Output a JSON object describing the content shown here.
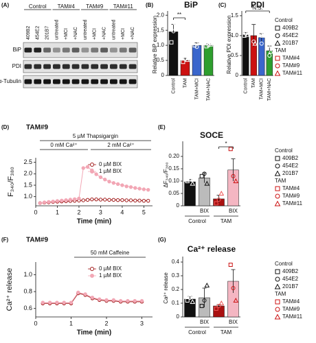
{
  "chart_data": [
    {
      "type": "blot",
      "label": "(A)",
      "groups": [
        {
          "name": "Control",
          "lanes": [
            "409B2",
            "454E2",
            "201B7"
          ]
        },
        {
          "name": "TAM#4",
          "lanes": [
            "untreated",
            "+MCI",
            "+NAC"
          ]
        },
        {
          "name": "TAM#9",
          "lanes": [
            "untreated",
            "+MCI",
            "+NAC"
          ]
        },
        {
          "name": "TAM#11",
          "lanes": [
            "untreated",
            "+MCI",
            "+NAC"
          ]
        }
      ],
      "rows": [
        "BiP",
        "PDI",
        "α-Tubulin"
      ]
    },
    {
      "type": "bar",
      "label": "(B)",
      "title": "BiP",
      "ylabel": "Relative BiP expression",
      "categories": [
        "Control",
        "TAM",
        "TAM+MCI",
        "TAM+NAC"
      ],
      "values": [
        1.45,
        0.5,
        1.0,
        1.0
      ],
      "errors": [
        0.25,
        0.07,
        0.08,
        0.05
      ],
      "points": [
        [
          1.1,
          1.47,
          1.75
        ],
        [
          0.45,
          0.55,
          0.52
        ],
        [
          1.0,
          0.95,
          1.08
        ],
        [
          0.97,
          1.0,
          1.03
        ]
      ],
      "colors": [
        "#111111",
        "#cc1111",
        "#3a66cc",
        "#2e9e2e"
      ],
      "point_colors": [
        "#ffffff",
        "#ffffff",
        "#ffffff",
        "#ffffff"
      ],
      "ylim": [
        0,
        2.05
      ],
      "yticks": [
        0,
        0.5,
        {
          "value": 1,
          "label": "1.0"
        },
        1.5,
        {
          "value": 2,
          "label": "2.0"
        }
      ],
      "significance": "**"
    },
    {
      "type": "bar",
      "label": "(C)",
      "title": "PDI",
      "ylabel": "Relative PDI expression",
      "categories": [
        "Control",
        "TAM",
        "TAM+MCI",
        "TAM+NAC"
      ],
      "values": [
        1.02,
        1.0,
        0.95,
        0.62
      ],
      "errors": [
        0.06,
        0.28,
        0.1,
        0.12
      ],
      "points": [
        [
          1.0,
          1.05,
          1.02
        ],
        [
          1.35,
          0.85,
          0.8
        ],
        [
          1.05,
          0.8,
          1.0
        ],
        [
          0.75,
          0.5,
          0.6
        ]
      ],
      "colors": [
        "#111111",
        "#cc1111",
        "#3a66cc",
        "#2e9e2e"
      ],
      "point_colors": [
        "#ffffff",
        "#ffffff",
        "#ffffff",
        "#ffffff"
      ],
      "ylim": [
        0,
        1.55
      ],
      "yticks": [
        0,
        0.5,
        {
          "value": 1,
          "label": "1.0"
        },
        1.5
      ],
      "significance": "N.S.",
      "legend": [
        {
          "title": "Control",
          "color": "#111111",
          "items": [
            "409B2",
            "454E2",
            "201B7"
          ]
        },
        {
          "title": "TAM",
          "color": "#cc1111",
          "items": [
            "TAM#4",
            "TAM#9",
            "TAM#11"
          ]
        }
      ]
    },
    {
      "type": "line",
      "label": "(D)",
      "title": "TAM#9",
      "ylabel": "F₃₄₀/F₃₈₀",
      "xlabel": "Time (min)",
      "annotations": [
        "5 µM Thapsigargin",
        "0 mM Ca²⁺",
        "2 mM Ca²⁺"
      ],
      "x": [
        0.2,
        0.4,
        0.6,
        0.8,
        1.0,
        1.2,
        1.4,
        1.6,
        1.8,
        2.0,
        2.2,
        2.4,
        2.6,
        2.8,
        3.0,
        3.2,
        3.4,
        3.6,
        3.8,
        4.0,
        4.2,
        4.4,
        4.6,
        4.8,
        5.0,
        5.2
      ],
      "series": [
        {
          "name": "0 µM BIX",
          "color": "#a01818",
          "marker": "open",
          "values": [
            0.72,
            0.74,
            0.75,
            0.77,
            0.78,
            0.79,
            0.8,
            0.81,
            0.82,
            0.83,
            0.84,
            0.86,
            0.88,
            0.88,
            0.87,
            0.87,
            0.86,
            0.86,
            0.85,
            0.85,
            0.84,
            0.84,
            0.83,
            0.83,
            0.82,
            0.82
          ]
        },
        {
          "name": "1 µM BIX",
          "color": "#f2a7b5",
          "marker": "filled",
          "values": [
            0.72,
            0.75,
            0.77,
            0.79,
            0.81,
            0.83,
            0.85,
            0.87,
            0.89,
            0.92,
            2.25,
            2.3,
            2.15,
            1.98,
            1.85,
            1.75,
            1.66,
            1.6,
            1.55,
            1.5,
            1.45,
            1.42,
            1.38,
            1.35,
            1.32,
            1.3
          ]
        }
      ],
      "xlim": [
        0,
        5.4
      ],
      "xticks": [
        0,
        1,
        2,
        3,
        4,
        5
      ],
      "ylim": [
        0.6,
        2.7
      ],
      "yticks": [
        {
          "value": 1,
          "label": "1.0"
        },
        1.5,
        {
          "value": 2,
          "label": "2.0"
        },
        2.5
      ]
    },
    {
      "type": "bar",
      "label": "(E)",
      "title": "SOCE",
      "ylabel": "ΔF₃₄₀/F₃₈₀",
      "categories": [
        null,
        "BIX",
        null,
        "BIX"
      ],
      "groups": [
        "Control",
        "TAM"
      ],
      "values": [
        0.097,
        0.113,
        0.028,
        0.145
      ],
      "errors": [
        0.01,
        0.02,
        0.015,
        0.045
      ],
      "points": [
        [
          0.1,
          0.11,
          0.09
        ],
        [
          0.12,
          0.13,
          0.09
        ],
        [
          0.01,
          0.025,
          0.05
        ],
        [
          0.23,
          0.12,
          0.1
        ]
      ],
      "colors": [
        "#111111",
        "#bbbbbb",
        "#aa1111",
        "#f4b6c2"
      ],
      "point_colors": [
        "#ffffff",
        "#111111",
        "#ee5555",
        "#cc1111"
      ],
      "ylim": [
        0,
        0.25
      ],
      "yticks": [
        0,
        0.05,
        {
          "value": 0.1,
          "label": "0.10"
        },
        0.15,
        {
          "value": 0.2,
          "label": "0.20"
        }
      ],
      "significance": "*",
      "legend": [
        {
          "title": "Control",
          "color": "#111111",
          "items": [
            "409B2",
            "454E2",
            "201B7"
          ]
        },
        {
          "title": "TAM",
          "color": "#cc1111",
          "items": [
            "TAM#4",
            "TAM#9",
            "TAM#11"
          ]
        }
      ]
    },
    {
      "type": "line",
      "label": "(F)",
      "title": "TAM#9",
      "ylabel": "Ca²⁺ release",
      "xlabel": "Time (min)",
      "annotations": [
        "50 mM Caffeine"
      ],
      "x": [
        0.2,
        0.4,
        0.6,
        0.8,
        1.0,
        1.2,
        1.4,
        1.6,
        1.8,
        2.0,
        2.2,
        2.4,
        2.6,
        2.8,
        3.0
      ],
      "series": [
        {
          "name": "0 µM BIX",
          "color": "#a01818",
          "marker": "open",
          "values": [
            0.66,
            0.66,
            0.66,
            0.66,
            0.66,
            0.78,
            0.76,
            0.72,
            0.7,
            0.69,
            0.69,
            0.68,
            0.68,
            0.68,
            0.68
          ]
        },
        {
          "name": "1 µM BIX",
          "color": "#f2a7b5",
          "marker": "filled",
          "values": [
            0.67,
            0.67,
            0.67,
            0.67,
            0.67,
            0.79,
            0.77,
            0.73,
            0.71,
            0.7,
            0.7,
            0.69,
            0.69,
            0.69,
            0.69
          ]
        }
      ],
      "xlim": [
        0,
        3.3
      ],
      "xticks": [
        0,
        1,
        2,
        3
      ],
      "ylim": [
        0.5,
        1.15
      ],
      "yticks": [
        0.6,
        0.8,
        {
          "value": 1,
          "label": "1.0"
        }
      ]
    },
    {
      "type": "bar",
      "label": "(G)",
      "title": "Ca²⁺ release",
      "ylabel": "Ca²⁺ release",
      "categories": [
        null,
        "BIX",
        null,
        "BIX"
      ],
      "groups": [
        "Control",
        "TAM"
      ],
      "values": [
        0.13,
        0.14,
        0.08,
        0.26
      ],
      "errors": [
        0.02,
        0.07,
        0.01,
        0.085
      ],
      "points": [
        [
          0.12,
          0.14,
          0.11
        ],
        [
          0.08,
          0.12,
          0.23
        ],
        [
          0.06,
          0.08,
          0.1
        ],
        [
          0.38,
          0.21,
          0.12
        ]
      ],
      "colors": [
        "#111111",
        "#bbbbbb",
        "#aa1111",
        "#f4b6c2"
      ],
      "point_colors": [
        "#ffffff",
        "#111111",
        "#ee5555",
        "#cc1111"
      ],
      "ylim": [
        0,
        0.42
      ],
      "yticks": [
        0,
        0.1,
        0.2,
        0.3,
        0.4
      ],
      "legend": [
        {
          "title": "Control",
          "color": "#111111",
          "items": [
            "409B2",
            "454E2",
            "201B7"
          ]
        },
        {
          "title": "TAM",
          "color": "#cc1111",
          "items": [
            "TAM#4",
            "TAM#9",
            "TAM#11"
          ]
        }
      ]
    }
  ]
}
